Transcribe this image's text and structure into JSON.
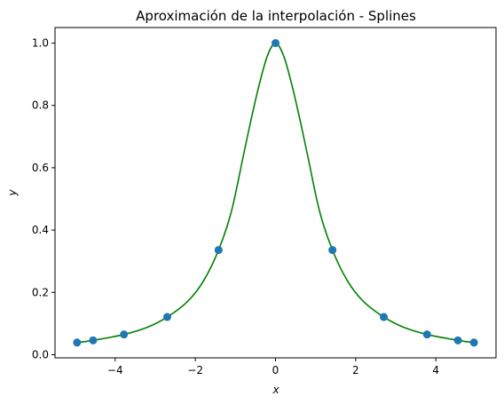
{
  "chart_data": {
    "type": "line",
    "title": "Aproximación de la interpolación - Splines",
    "xlabel": "x",
    "ylabel": "y",
    "xlim": [
      -5.5,
      5.5
    ],
    "ylim": [
      -0.01,
      1.05
    ],
    "x_ticks": [
      -4,
      -2,
      0,
      2,
      4
    ],
    "x_tick_labels": [
      "−4",
      "−2",
      "0",
      "2",
      "4"
    ],
    "y_ticks": [
      0.0,
      0.2,
      0.4,
      0.6,
      0.8,
      1.0
    ],
    "y_tick_labels": [
      "0.0",
      "0.2",
      "0.4",
      "0.6",
      "0.8",
      "1.0"
    ],
    "grid": false,
    "curve_color": "#008000",
    "point_color": "#1f77b4",
    "points": {
      "x": [
        -4.95,
        -4.55,
        -3.78,
        -2.7,
        -1.42,
        0.0,
        1.42,
        2.7,
        3.78,
        4.55,
        4.95
      ],
      "y": [
        0.039,
        0.046,
        0.065,
        0.121,
        0.336,
        1.0,
        0.336,
        0.121,
        0.065,
        0.046,
        0.039
      ]
    },
    "curve": {
      "x": [
        -4.95,
        -4.55,
        -3.78,
        -3.2,
        -2.7,
        -2.2,
        -1.8,
        -1.42,
        -1.1,
        -0.8,
        -0.6,
        -0.4,
        -0.2,
        0.0,
        0.2,
        0.4,
        0.6,
        0.8,
        1.1,
        1.42,
        1.8,
        2.2,
        2.7,
        3.2,
        3.78,
        4.55,
        4.95
      ],
      "y": [
        0.039,
        0.046,
        0.065,
        0.088,
        0.121,
        0.17,
        0.236,
        0.336,
        0.46,
        0.64,
        0.76,
        0.87,
        0.96,
        1.0,
        0.96,
        0.87,
        0.76,
        0.64,
        0.46,
        0.336,
        0.236,
        0.17,
        0.121,
        0.088,
        0.065,
        0.046,
        0.039
      ]
    }
  }
}
